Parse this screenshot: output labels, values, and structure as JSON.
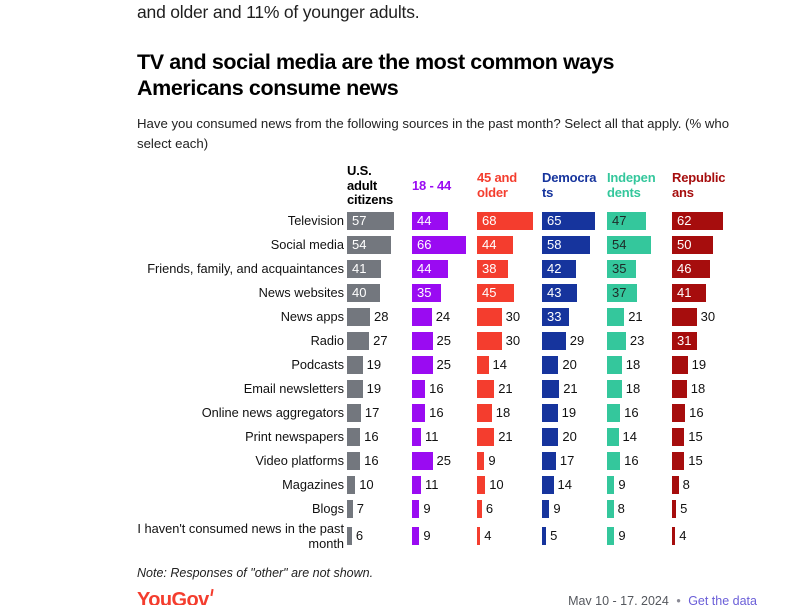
{
  "intro_text": "and older and 11% of younger adults.",
  "chart": {
    "title": "TV and social media are the most common ways Americans consume news",
    "subtitle": "Have you consumed news from the following sources in the past month? Select all that apply. (% who select each)"
  },
  "note": "Note: Responses of \"other\" are not shown.",
  "footer": {
    "logo": "YouGov",
    "date_range": "May 10 - 17, 2024",
    "separator": "•",
    "link": "Get the data",
    "link_color": "#6B5FD8"
  },
  "chart_data": {
    "type": "bar",
    "orientation": "horizontal",
    "title": "TV and social media are the most common ways Americans consume news",
    "subtitle": "Have you consumed news from the following sources in the past month? Select all that apply. (% who select each)",
    "unit": "%",
    "value_range": [
      0,
      100
    ],
    "grid": false,
    "legend_position": "column-headers-top",
    "categories": [
      "Television",
      "Social media",
      "Friends, family, and acquaintances",
      "News websites",
      "News apps",
      "Radio",
      "Podcasts",
      "Email newsletters",
      "Online news aggregators",
      "Print newspapers",
      "Video platforms",
      "Magazines",
      "Blogs",
      "I haven't consumed news in the past month"
    ],
    "series": [
      {
        "name": "U.S. adult citizens",
        "header_display": "U.S.\nadult\ncitizens",
        "header_color": "#000000",
        "color": "#73777E",
        "inside_text_color": "#ffffff",
        "values": [
          57,
          54,
          41,
          40,
          28,
          27,
          19,
          19,
          17,
          16,
          16,
          10,
          7,
          6
        ]
      },
      {
        "name": "18 - 44",
        "header_display": "18 - 44",
        "header_color": "#9A0BF2",
        "color": "#9A0BF2",
        "inside_text_color": "#ffffff",
        "values": [
          44,
          66,
          44,
          35,
          24,
          25,
          25,
          16,
          16,
          11,
          25,
          11,
          9,
          9
        ]
      },
      {
        "name": "45 and older",
        "header_display": "45 and\nolder",
        "header_color": "#F43D2E",
        "color": "#F43D2E",
        "inside_text_color": "#ffffff",
        "values": [
          68,
          44,
          38,
          45,
          30,
          30,
          14,
          21,
          18,
          21,
          9,
          10,
          6,
          4
        ]
      },
      {
        "name": "Democrats",
        "header_display": "Democra\nts",
        "header_color": "#16349D",
        "color": "#16349D",
        "inside_text_color": "#ffffff",
        "values": [
          65,
          58,
          42,
          43,
          33,
          29,
          20,
          21,
          19,
          20,
          17,
          14,
          9,
          5
        ]
      },
      {
        "name": "Independents",
        "header_display": "Indepen\ndents",
        "header_color": "#34C79C",
        "color": "#34C79C",
        "inside_text_color": "#1e2a28",
        "values": [
          47,
          54,
          35,
          37,
          21,
          23,
          18,
          18,
          16,
          14,
          16,
          9,
          8,
          9
        ]
      },
      {
        "name": "Republicans",
        "header_display": "Republic\nans",
        "header_color": "#A60D0D",
        "color": "#A60D0D",
        "inside_text_color": "#ffffff",
        "values": [
          62,
          50,
          46,
          41,
          30,
          31,
          19,
          18,
          16,
          15,
          15,
          8,
          5,
          4
        ]
      }
    ]
  }
}
